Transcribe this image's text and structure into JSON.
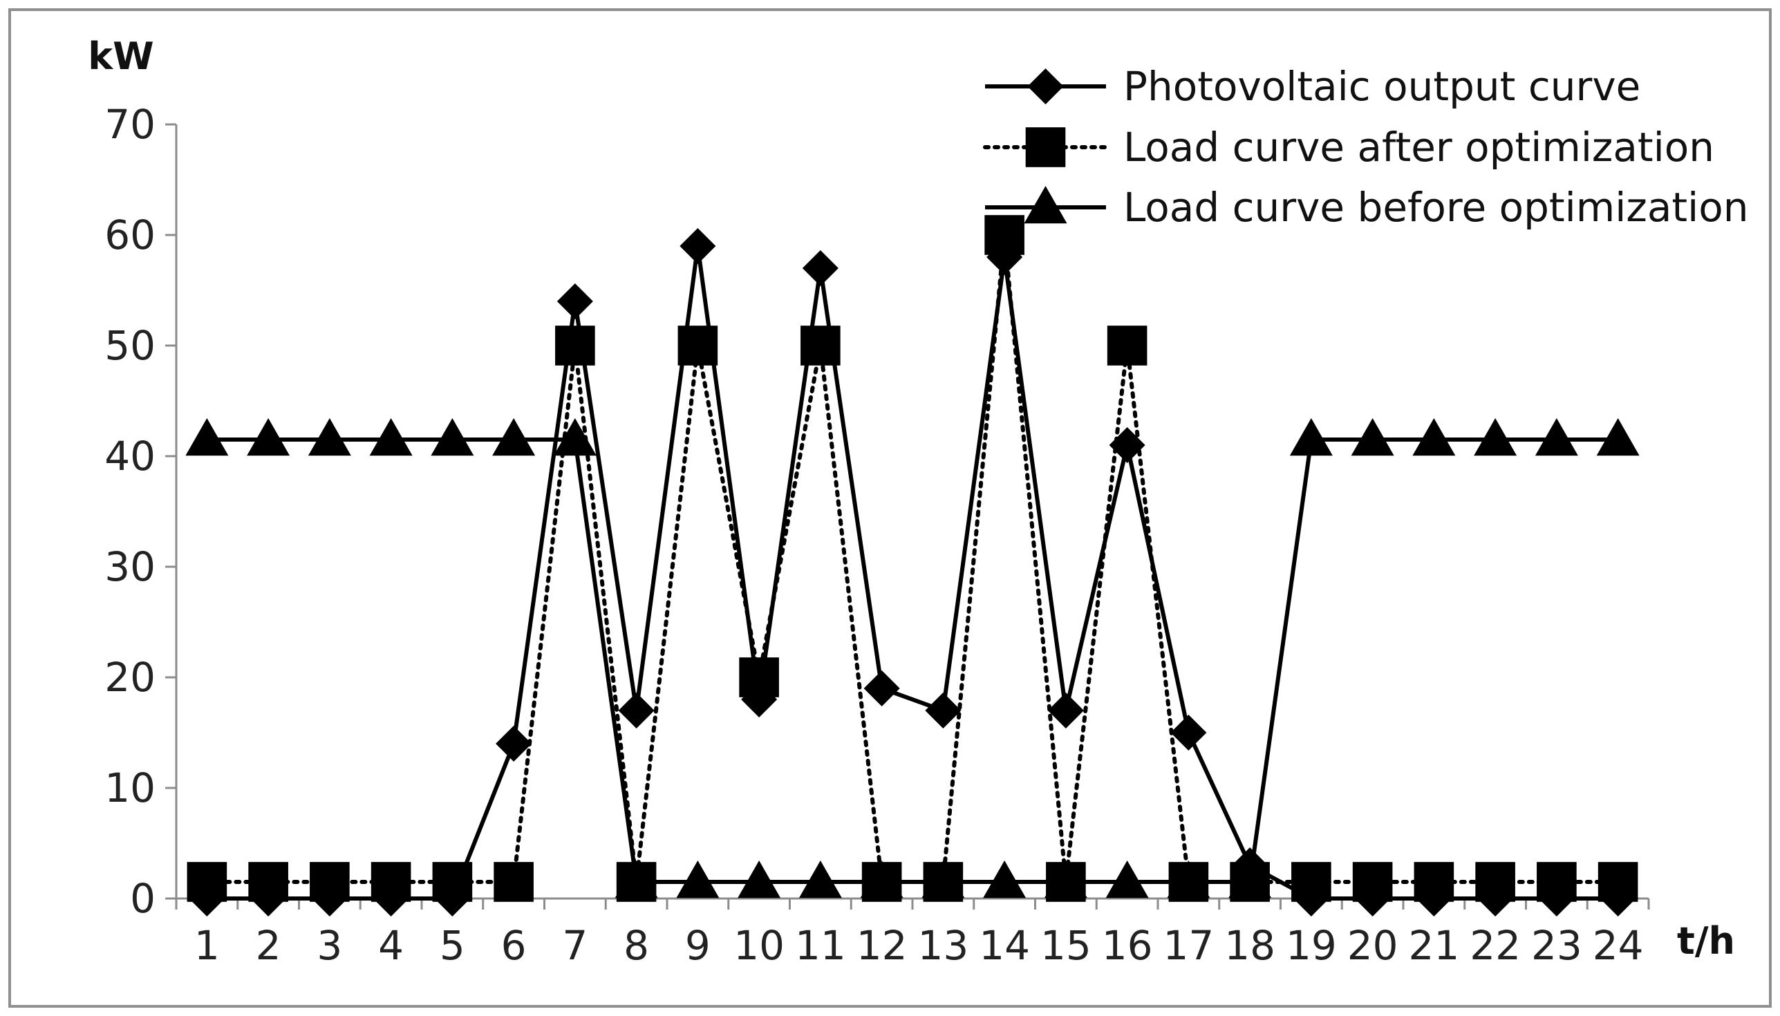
{
  "chart_data": {
    "type": "line",
    "title": "",
    "ylabel": "kW",
    "xlabel": "t/h",
    "categories": [
      "1",
      "2",
      "3",
      "4",
      "5",
      "6",
      "7",
      "8",
      "9",
      "10",
      "11",
      "12",
      "13",
      "14",
      "15",
      "16",
      "17",
      "18",
      "19",
      "20",
      "21",
      "22",
      "23",
      "24"
    ],
    "y_ticks": [
      "0",
      "10",
      "20",
      "30",
      "40",
      "50",
      "60",
      "70"
    ],
    "ylim": [
      0,
      70
    ],
    "grid": false,
    "legend_position": "top-right",
    "series": [
      {
        "name": "Photovoltaic output curve",
        "line_style": "solid",
        "marker": "diamond",
        "values": [
          0,
          0,
          0,
          0,
          0,
          14,
          54,
          17,
          59,
          18,
          57,
          19,
          17,
          58,
          17,
          41,
          15,
          3,
          0,
          0,
          0,
          0,
          0,
          0
        ]
      },
      {
        "name": "Load curve after optimization",
        "line_style": "dotted",
        "marker": "square",
        "values": [
          1.5,
          1.5,
          1.5,
          1.5,
          1.5,
          1.5,
          50,
          1.5,
          50,
          20,
          50,
          1.5,
          1.5,
          60,
          1.5,
          50,
          1.5,
          1.5,
          1.5,
          1.5,
          1.5,
          1.5,
          1.5,
          1.5
        ]
      },
      {
        "name": "Load curve before optimization",
        "line_style": "solid",
        "marker": "triangle",
        "values": [
          41.5,
          41.5,
          41.5,
          41.5,
          41.5,
          41.5,
          41.5,
          1.5,
          1.5,
          1.5,
          1.5,
          1.5,
          1.5,
          1.5,
          1.5,
          1.5,
          1.5,
          1.5,
          41.5,
          41.5,
          41.5,
          41.5,
          41.5,
          41.5
        ]
      }
    ],
    "colors": {
      "line": "#000000",
      "frame": "#888888",
      "axis": "#8c8c8c"
    }
  }
}
